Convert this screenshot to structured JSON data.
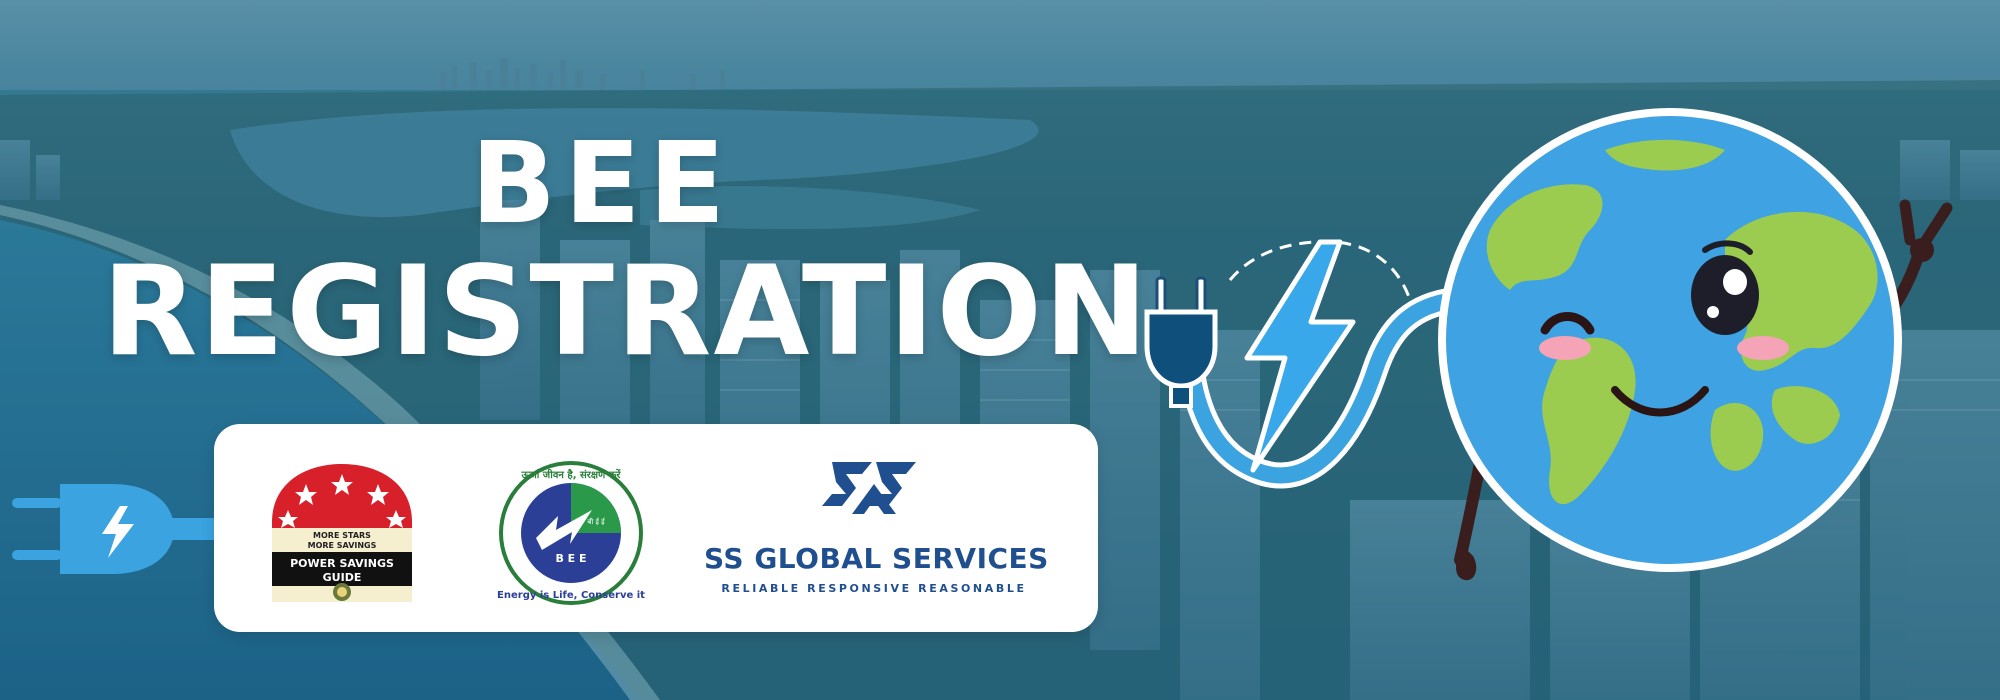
{
  "banner": {
    "title_line1": "BEE",
    "title_line2": "REGISTRATION"
  },
  "logos": {
    "stars_logo": {
      "text_line1": "MORE STARS",
      "text_line2": "MORE SAVINGS",
      "text_line3": "POWER SAVINGS",
      "text_line4": "GUIDE"
    },
    "bee_logo": {
      "hindi_text": "ऊर्जा जीवन है, संरक्षण करें",
      "letters": "B E E",
      "small_text": "बी ई ई",
      "english_text": "Energy is Life, Conserve it"
    },
    "ss_logo": {
      "name": "SS GLOBAL SERVICES",
      "tagline": "RELIABLE RESPONSIVE REASONABLE"
    }
  },
  "colors": {
    "overlay_blue": "#2b6a86",
    "title_white": "#ffffff",
    "ss_blue": "#1f4f8f",
    "plug_blue": "#3aa3e0",
    "earth_ocean": "#3ea2e3",
    "earth_land": "#9ccc4f"
  },
  "icons": [
    "plug-icon",
    "lightning-bolt-icon",
    "earth-mascot-icon",
    "star-icon"
  ]
}
